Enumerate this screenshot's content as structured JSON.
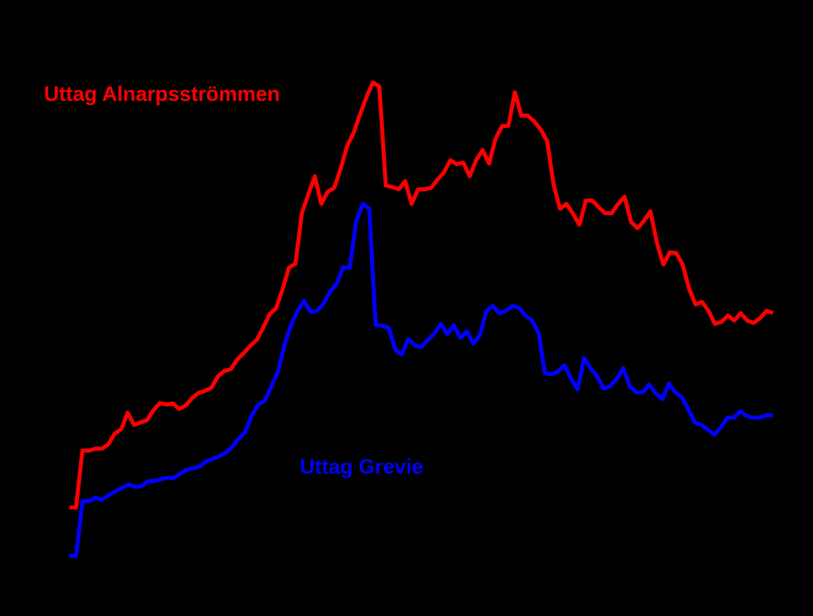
{
  "chart_data": {
    "type": "line",
    "title": "",
    "xlabel": "",
    "ylabel": "",
    "grid": false,
    "legend": "inline",
    "ylim": [
      0,
      100
    ],
    "series": [
      {
        "name": "Uttag Alnarpsströmmen",
        "color": "#ff0000",
        "values": [
          10.0,
          10.0,
          21.7,
          21.7,
          22.1,
          22.1,
          23.0,
          25.2,
          26.1,
          29.5,
          27.0,
          27.5,
          28.0,
          30.0,
          31.5,
          31.2,
          31.4,
          30.3,
          31.0,
          32.5,
          33.6,
          34.0,
          34.7,
          37.0,
          38.1,
          38.5,
          40.5,
          41.8,
          43.3,
          44.5,
          47.0,
          49.8,
          51.0,
          54.9,
          59.4,
          60.2,
          70.6,
          74.5,
          78.2,
          72.5,
          75.0,
          75.8,
          79.7,
          84.4,
          87.1,
          90.9,
          94.5,
          97.5,
          96.7,
          76.3,
          76.0,
          75.5,
          77.2,
          72.5,
          75.5,
          75.5,
          75.8,
          77.5,
          79.0,
          81.5,
          80.7,
          81.0,
          78.2,
          81.5,
          83.6,
          80.8,
          85.9,
          88.5,
          88.6,
          95.5,
          90.7,
          90.7,
          89.5,
          87.8,
          85.5,
          76.5,
          71.5,
          72.5,
          70.5,
          68.2,
          73.2,
          73.2,
          71.8,
          70.6,
          70.6,
          72.5,
          74.0,
          68.8,
          67.5,
          69.0,
          71.0,
          64.5,
          60.0,
          62.5,
          62.4,
          60.0,
          55.0,
          51.8,
          52.3,
          50.5,
          47.8,
          48.2,
          49.5,
          48.5,
          50.0,
          48.5,
          48.0,
          49.0,
          50.5,
          50.0
        ]
      },
      {
        "name": "Uttag Grevie",
        "color": "#0000ff",
        "values": [
          0.0,
          0.0,
          11.3,
          11.3,
          12.0,
          11.6,
          12.5,
          13.3,
          14.0,
          14.7,
          14.3,
          14.3,
          15.4,
          15.4,
          15.8,
          16.1,
          16.1,
          17.0,
          17.8,
          18.0,
          18.5,
          19.5,
          20.0,
          20.6,
          21.3,
          22.5,
          24.2,
          25.6,
          29.0,
          31.2,
          32.0,
          35.0,
          38.0,
          43.5,
          47.5,
          50.5,
          52.5,
          50.3,
          50.5,
          52.0,
          54.5,
          56.0,
          59.5,
          59.3,
          68.8,
          72.5,
          71.5,
          47.6,
          47.4,
          47.0,
          42.5,
          41.5,
          44.7,
          43.4,
          43.0,
          44.5,
          45.8,
          47.8,
          45.7,
          47.5,
          44.9,
          46.3,
          43.7,
          45.5,
          50.5,
          51.5,
          50.0,
          50.5,
          51.5,
          51.1,
          49.5,
          48.5,
          46.0,
          37.6,
          37.4,
          38.0,
          39.3,
          36.5,
          34.3,
          40.8,
          38.6,
          37.0,
          34.5,
          35.0,
          36.4,
          38.7,
          35.0,
          33.7,
          33.7,
          35.3,
          33.5,
          32.3,
          35.5,
          33.7,
          32.7,
          30.2,
          27.5,
          27.0,
          26.0,
          25.0,
          26.5,
          28.5,
          28.5,
          29.8,
          28.8,
          28.5,
          28.5,
          29.0,
          29.0
        ]
      }
    ]
  }
}
